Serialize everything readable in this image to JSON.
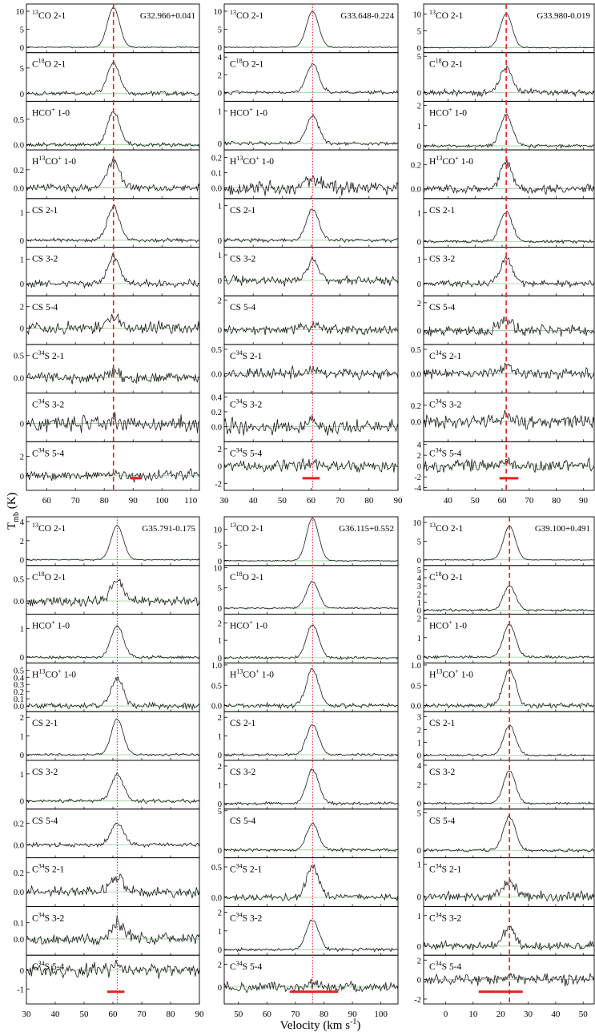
{
  "figure": {
    "ylabel_main": "T",
    "ylabel_sub": "mb",
    "ylabel_unit": " (K)",
    "xlabel_main": "Velocity (km s",
    "xlabel_exp": "-1",
    "xlabel_close": ")"
  },
  "chart_data": [
    {
      "type": "line",
      "source": "G32.966+0.041",
      "xlim": [
        53,
        113
      ],
      "xticks": [
        60,
        70,
        80,
        90,
        100,
        110
      ],
      "v_ref": 83.2,
      "line_style": "dashed",
      "bar": [
        89,
        93
      ],
      "panels": [
        {
          "species": "13CO 2-1",
          "yticks": [
            0,
            5,
            10
          ],
          "ylim": [
            -1.5,
            12
          ],
          "peak": 11,
          "noise": 0.12
        },
        {
          "species": "C18O 2-1",
          "yticks": [
            0,
            5
          ],
          "ylim": [
            -1.5,
            8
          ],
          "peak": 6,
          "noise": 0.3
        },
        {
          "species": "HCO+ 1-0",
          "yticks": [
            0.0,
            0.5
          ],
          "ylim": [
            -0.1,
            0.85
          ],
          "peak": 0.65,
          "noise": 0.03
        },
        {
          "species": "H13CO+ 1-0",
          "yticks": [
            0.0,
            0.2
          ],
          "ylim": [
            -0.12,
            0.42
          ],
          "peak": 0.3,
          "noise": 0.03
        },
        {
          "species": "CS 2-1",
          "yticks": [
            0,
            1
          ],
          "ylim": [
            -0.25,
            1.5
          ],
          "peak": 1.2,
          "noise": 0.05
        },
        {
          "species": "CS 3-2",
          "yticks": [
            0,
            1
          ],
          "ylim": [
            -0.5,
            1.5
          ],
          "peak": 1.1,
          "noise": 0.1
        },
        {
          "species": "CS 5-4",
          "yticks": [
            0,
            2
          ],
          "ylim": [
            -1.5,
            3
          ],
          "peak": 1.0,
          "noise": 0.4
        },
        {
          "species": "C34S 2-1",
          "yticks": [
            0.0,
            0.5
          ],
          "ylim": [
            -0.35,
            0.75
          ],
          "peak": 0.15,
          "noise": 0.09
        },
        {
          "species": "C34S 3-2",
          "yticks": [
            0.0
          ],
          "ylim": [
            -0.3,
            0.5
          ],
          "peak": 0.05,
          "noise": 0.09
        },
        {
          "species": "C34S 5-4",
          "yticks": [
            0,
            2
          ],
          "ylim": [
            -1.5,
            3.5
          ],
          "peak": 0.2,
          "noise": 0.4
        }
      ]
    },
    {
      "type": "line",
      "source": "G33.648-0.224",
      "xlim": [
        30,
        90
      ],
      "xticks": [
        30,
        40,
        50,
        60,
        70,
        80,
        90
      ],
      "v_ref": 60.5,
      "line_style": "dotted",
      "bar": [
        57,
        63
      ],
      "panels": [
        {
          "species": "13CO 2-1",
          "yticks": [
            0,
            5,
            10
          ],
          "ylim": [
            -1.5,
            12
          ],
          "peak": 10,
          "noise": 0.1
        },
        {
          "species": "C18O 2-1",
          "yticks": [
            0,
            2,
            4
          ],
          "ylim": [
            -1,
            4.5
          ],
          "peak": 3.2,
          "noise": 0.15
        },
        {
          "species": "HCO+ 1-0",
          "yticks": [
            0,
            1
          ],
          "ylim": [
            -0.2,
            1.3
          ],
          "peak": 0.85,
          "noise": 0.04
        },
        {
          "species": "H13CO+ 1-0",
          "yticks": [
            0.0,
            0.1,
            0.2
          ],
          "ylim": [
            -0.07,
            0.25
          ],
          "peak": 0.06,
          "noise": 0.03
        },
        {
          "species": "CS 2-1",
          "yticks": [
            0,
            1
          ],
          "ylim": [
            -0.2,
            1.2
          ],
          "peak": 0.9,
          "noise": 0.04
        },
        {
          "species": "CS 3-2",
          "yticks": [
            0,
            1
          ],
          "ylim": [
            -0.6,
            1.3
          ],
          "peak": 0.8,
          "noise": 0.12
        },
        {
          "species": "CS 5-4",
          "yticks": [
            0,
            2
          ],
          "ylim": [
            -1,
            2.3
          ],
          "peak": 0.3,
          "noise": 0.25
        },
        {
          "species": "C34S 2-1",
          "yticks": [
            0.0,
            0.5
          ],
          "ylim": [
            -0.4,
            0.6
          ],
          "peak": 0.1,
          "noise": 0.08
        },
        {
          "species": "C34S 3-2",
          "yticks": [
            0.0,
            0.2,
            0.4
          ],
          "ylim": [
            -0.2,
            0.45
          ],
          "peak": 0.05,
          "noise": 0.07
        },
        {
          "species": "C34S 5-4",
          "yticks": [
            -2,
            0,
            2
          ],
          "ylim": [
            -2.8,
            2.8
          ],
          "peak": 0.3,
          "noise": 0.5
        }
      ]
    },
    {
      "type": "line",
      "source": "G33.980-0.019",
      "xlim": [
        31,
        94
      ],
      "xticks": [
        40,
        50,
        60,
        70,
        80,
        90
      ],
      "v_ref": 61.5,
      "line_style": "dashed",
      "bar": [
        59,
        66
      ],
      "panels": [
        {
          "species": "13CO 2-1",
          "yticks": [
            0,
            5,
            10
          ],
          "ylim": [
            -1.5,
            13
          ],
          "peak": 10,
          "noise": 0.12
        },
        {
          "species": "C18O 2-1",
          "yticks": [
            0,
            5
          ],
          "ylim": [
            -1.2,
            5.5
          ],
          "peak": 3.5,
          "noise": 0.3
        },
        {
          "species": "HCO+ 1-0",
          "yticks": [
            0,
            1,
            2
          ],
          "ylim": [
            -0.2,
            2.2
          ],
          "peak": 1.5,
          "noise": 0.06
        },
        {
          "species": "H13CO+ 1-0",
          "yticks": [
            0.0,
            0.2
          ],
          "ylim": [
            -0.08,
            0.32
          ],
          "peak": 0.22,
          "noise": 0.025
        },
        {
          "species": "CS 2-1",
          "yticks": [
            0,
            1
          ],
          "ylim": [
            -0.2,
            1.5
          ],
          "peak": 1.05,
          "noise": 0.04
        },
        {
          "species": "CS 3-2",
          "yticks": [
            0,
            1
          ],
          "ylim": [
            -0.5,
            1.5
          ],
          "peak": 1.0,
          "noise": 0.1
        },
        {
          "species": "CS 5-4",
          "yticks": [
            0,
            2
          ],
          "ylim": [
            -1,
            2.5
          ],
          "peak": 0.9,
          "noise": 0.3
        },
        {
          "species": "C34S 2-1",
          "yticks": [
            0.0,
            0.5
          ],
          "ylim": [
            -0.4,
            0.6
          ],
          "peak": 0.15,
          "noise": 0.08
        },
        {
          "species": "C34S 3-2",
          "yticks": [
            0.0,
            0.2
          ],
          "ylim": [
            -0.25,
            0.35
          ],
          "peak": 0.08,
          "noise": 0.06
        },
        {
          "species": "C34S 5-4",
          "yticks": [
            -4,
            -2,
            0,
            2,
            4
          ],
          "ylim": [
            -4.5,
            4.5
          ],
          "peak": 0.5,
          "noise": 0.8
        }
      ]
    },
    {
      "type": "line",
      "source": "G35.791-0.175",
      "xlim": [
        30,
        90
      ],
      "xticks": [
        30,
        40,
        50,
        60,
        70,
        80,
        90
      ],
      "v_ref": 61.5,
      "line_style": "dotted",
      "bar": [
        58,
        64
      ],
      "panels": [
        {
          "species": "13CO 2-1",
          "yticks": [
            0,
            2,
            4
          ],
          "ylim": [
            -0.6,
            4.5
          ],
          "peak": 3.6,
          "noise": 0.05
        },
        {
          "species": "C18O 2-1",
          "yticks": [
            0.0,
            0.5
          ],
          "ylim": [
            -0.3,
            0.8
          ],
          "peak": 0.45,
          "noise": 0.08
        },
        {
          "species": "HCO+ 1-0",
          "yticks": [
            0,
            1
          ],
          "ylim": [
            -0.2,
            1.5
          ],
          "peak": 1.1,
          "noise": 0.04
        },
        {
          "species": "H13CO+ 1-0",
          "yticks": [
            0.0,
            0.1,
            0.2,
            0.3,
            0.4,
            0.5
          ],
          "ylim": [
            -0.08,
            0.6
          ],
          "peak": 0.38,
          "noise": 0.03
        },
        {
          "species": "CS 2-1",
          "yticks": [
            0,
            1,
            2
          ],
          "ylim": [
            -0.3,
            2.3
          ],
          "peak": 1.9,
          "noise": 0.05
        },
        {
          "species": "CS 3-2",
          "yticks": [
            0,
            1
          ],
          "ylim": [
            -0.3,
            1.5
          ],
          "peak": 1.0,
          "noise": 0.05
        },
        {
          "species": "CS 5-4",
          "yticks": [
            0.0,
            0.2
          ],
          "ylim": [
            -0.12,
            0.33
          ],
          "peak": 0.2,
          "noise": 0.015
        },
        {
          "species": "C34S 2-1",
          "yticks": [
            0.0,
            0.2
          ],
          "ylim": [
            -0.15,
            0.35
          ],
          "peak": 0.15,
          "noise": 0.04
        },
        {
          "species": "C34S 3-2",
          "yticks": [
            0.0,
            0.1
          ],
          "ylim": [
            -0.1,
            0.2
          ],
          "peak": 0.1,
          "noise": 0.025
        },
        {
          "species": "C34S 5-4",
          "yticks": [
            -1,
            0
          ],
          "ylim": [
            -1.8,
            0.8
          ],
          "peak": 0.2,
          "noise": 0.25
        }
      ]
    },
    {
      "type": "line",
      "source": "G36.115+0.552",
      "xlim": [
        45,
        106
      ],
      "xticks": [
        50,
        60,
        70,
        80,
        90,
        100
      ],
      "v_ref": 76,
      "line_style": "dotted",
      "bar": [
        68,
        85
      ],
      "panels": [
        {
          "species": "13CO 2-1",
          "yticks": [
            0,
            5,
            10
          ],
          "ylim": [
            -1.5,
            14
          ],
          "peak": 13.5,
          "noise": 0.1
        },
        {
          "species": "C18O 2-1",
          "yticks": [
            0,
            5,
            10
          ],
          "ylim": [
            -1.5,
            10.5
          ],
          "peak": 6.5,
          "noise": 0.15
        },
        {
          "species": "HCO+ 1-0",
          "yticks": [
            0,
            1,
            2
          ],
          "ylim": [
            -0.3,
            2.5
          ],
          "peak": 1.9,
          "noise": 0.05
        },
        {
          "species": "H13CO+ 1-0",
          "yticks": [
            0.0,
            0.5,
            1.0
          ],
          "ylim": [
            -0.15,
            1.05
          ],
          "peak": 0.9,
          "noise": 0.04
        },
        {
          "species": "CS 2-1",
          "yticks": [
            0,
            1,
            2
          ],
          "ylim": [
            -0.3,
            2.3
          ],
          "peak": 1.6,
          "noise": 0.05
        },
        {
          "species": "CS 3-2",
          "yticks": [
            0,
            1,
            2
          ],
          "ylim": [
            -0.3,
            2.3
          ],
          "peak": 1.8,
          "noise": 0.06
        },
        {
          "species": "CS 5-4",
          "yticks": [
            0,
            5
          ],
          "ylim": [
            -1,
            5.2
          ],
          "peak": 3.3,
          "noise": 0.15
        },
        {
          "species": "C34S 2-1",
          "yticks": [
            0.0,
            0.5
          ],
          "ylim": [
            -0.15,
            0.65
          ],
          "peak": 0.5,
          "noise": 0.04
        },
        {
          "species": "C34S 3-2",
          "yticks": [
            0,
            1,
            2
          ],
          "ylim": [
            -0.3,
            2.3
          ],
          "peak": 1.6,
          "noise": 0.06
        },
        {
          "species": "C34S 5-4",
          "yticks": [
            0,
            2
          ],
          "ylim": [
            -1.5,
            2.8
          ],
          "peak": 0.3,
          "noise": 0.3
        }
      ]
    },
    {
      "type": "line",
      "source": "G39.100+0.491",
      "xlim": [
        -8,
        54
      ],
      "xticks": [
        0,
        10,
        20,
        30,
        40,
        50
      ],
      "v_ref": 23.2,
      "line_style": "dashed",
      "bar": [
        12,
        28
      ],
      "panels": [
        {
          "species": "13CO 2-1",
          "yticks": [
            0,
            5,
            10
          ],
          "ylim": [
            -1.5,
            11.5
          ],
          "peak": 9,
          "noise": 0.08
        },
        {
          "species": "C18O 2-1",
          "yticks": [
            0,
            1,
            2,
            3,
            4,
            5
          ],
          "ylim": [
            -0.5,
            5.5
          ],
          "peak": 3,
          "noise": 0.1
        },
        {
          "species": "HCO+ 1-0",
          "yticks": [
            0,
            1,
            2
          ],
          "ylim": [
            -0.3,
            2.2
          ],
          "peak": 1.7,
          "noise": 0.05
        },
        {
          "species": "H13CO+ 1-0",
          "yticks": [
            0.0,
            0.5,
            1.0
          ],
          "ylim": [
            -0.15,
            1.05
          ],
          "peak": 0.9,
          "noise": 0.04
        },
        {
          "species": "CS 2-1",
          "yticks": [
            0,
            1,
            2,
            3
          ],
          "ylim": [
            -0.4,
            3.4
          ],
          "peak": 2.3,
          "noise": 0.06
        },
        {
          "species": "CS 3-2",
          "yticks": [
            0,
            2,
            4
          ],
          "ylim": [
            -0.6,
            4.5
          ],
          "peak": 3.4,
          "noise": 0.08
        },
        {
          "species": "CS 5-4",
          "yticks": [
            0,
            5
          ],
          "ylim": [
            -1,
            5.5
          ],
          "peak": 4.5,
          "noise": 0.15
        },
        {
          "species": "C34S 2-1",
          "yticks": [
            0,
            1
          ],
          "ylim": [
            -0.3,
            1.2
          ],
          "peak": 0.5,
          "noise": 0.1
        },
        {
          "species": "C34S 3-2",
          "yticks": [
            0,
            1
          ],
          "ylim": [
            -0.3,
            1.3
          ],
          "peak": 0.6,
          "noise": 0.1
        },
        {
          "species": "C34S 5-4",
          "yticks": [
            -2,
            0,
            2
          ],
          "ylim": [
            -2.5,
            2.5
          ],
          "peak": 0.5,
          "noise": 0.4
        }
      ]
    }
  ]
}
